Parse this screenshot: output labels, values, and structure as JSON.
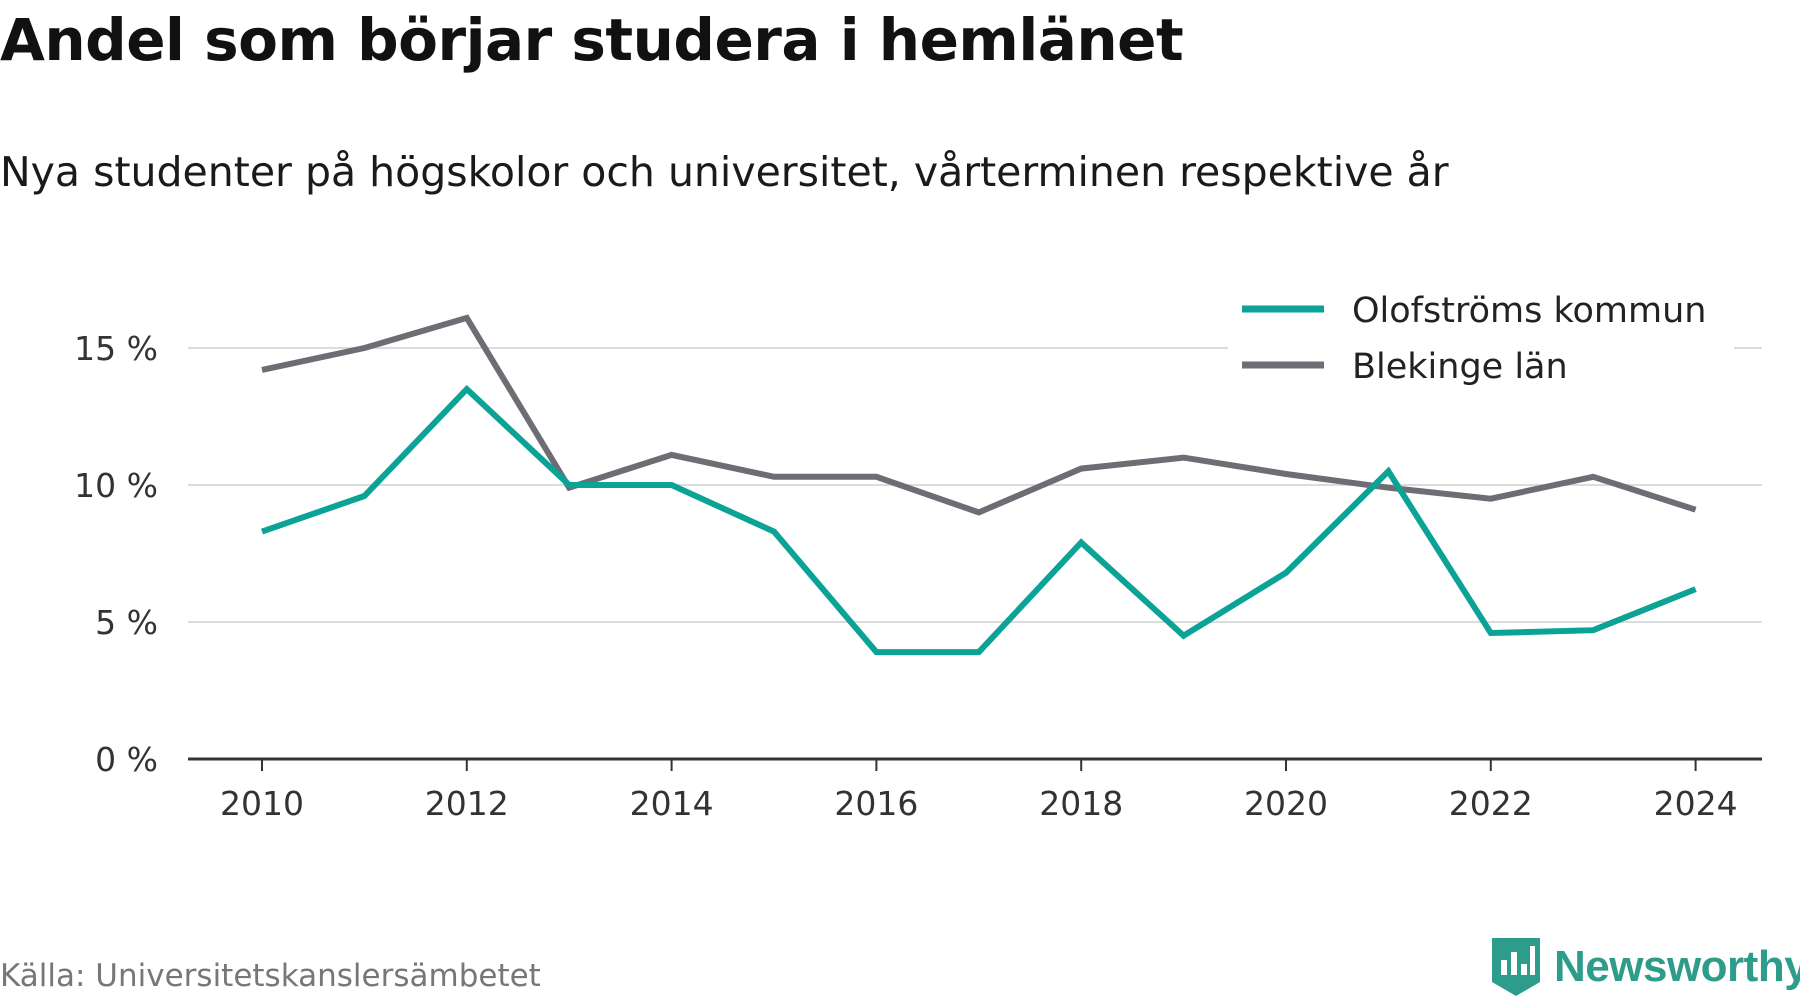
{
  "chart_data": {
    "type": "line",
    "title": "Andel som börjar studera i hemlänet",
    "subtitle": "Nya studenter på högskolor och universitet, vårterminen respektive år",
    "x": [
      2010,
      2011,
      2012,
      2013,
      2014,
      2015,
      2016,
      2017,
      2018,
      2019,
      2020,
      2021,
      2022,
      2023,
      2024
    ],
    "x_ticks": [
      "2010",
      "2012",
      "2014",
      "2016",
      "2018",
      "2020",
      "2022",
      "2024"
    ],
    "y_ticks": [
      "0 %",
      "5 %",
      "10 %",
      "15 %"
    ],
    "ylim": [
      0,
      16
    ],
    "grid": true,
    "legend_position": "top-right",
    "series": [
      {
        "name": "Olofströms kommun",
        "color": "#0aa396",
        "values": [
          8.3,
          9.6,
          13.5,
          10.0,
          10.0,
          8.3,
          3.9,
          3.9,
          7.9,
          4.5,
          6.8,
          10.5,
          4.6,
          4.7,
          6.2
        ]
      },
      {
        "name": "Blekinge län",
        "color": "#6e6d74",
        "values": [
          14.2,
          15.0,
          16.1,
          9.9,
          11.1,
          10.3,
          10.3,
          9.0,
          10.6,
          11.0,
          10.4,
          9.9,
          9.5,
          10.3,
          9.1
        ]
      }
    ]
  },
  "source": "Källa: Universitetskanslersämbetet",
  "brand": {
    "name": "Newsworthy",
    "color": "#2e9c8a",
    "icon": "newsworthy-logo-icon"
  }
}
